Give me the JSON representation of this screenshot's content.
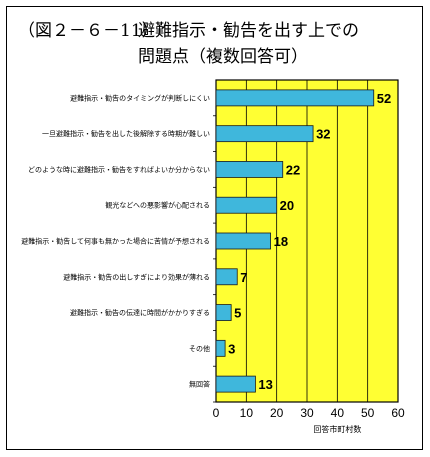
{
  "title": {
    "number": "（図２－６－11）",
    "line1": "避難指示・勧告を出す上での",
    "line2": "問題点（複数回答可）"
  },
  "chart_data": {
    "type": "bar",
    "orientation": "horizontal",
    "categories": [
      "避難指示・勧告のタイミングが判断しにくい",
      "一旦避難指示・勧告を出した後解除する時期が難しい",
      "どのような時に避難指示・勧告をすればよいか分からない",
      "観光などへの悪影響が心配される",
      "避難指示・勧告して何事も無かった場合に苦情が予想される",
      "避難指示・勧告の出しすぎにより効果が薄れる",
      "避難指示・勧告の伝達に時間がかかりすぎる",
      "その他",
      "無回答"
    ],
    "values": [
      52,
      32,
      22,
      20,
      18,
      7,
      5,
      3,
      13
    ],
    "xlabel": "回答市町村数",
    "xlim": [
      0,
      60
    ],
    "xticks": [
      0,
      10,
      20,
      30,
      40,
      50,
      60
    ],
    "grid": true,
    "colors": {
      "plot_bg": "#ffff33",
      "bar": "#3fb7dc",
      "bar_edge": "#1a1a1a",
      "grid": "#000000"
    }
  }
}
